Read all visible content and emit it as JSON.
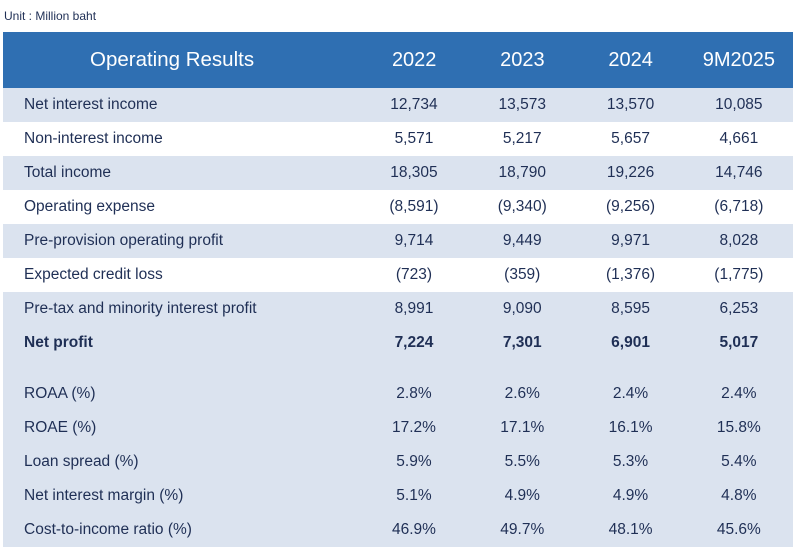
{
  "unit_label": "Unit : Million baht",
  "header": {
    "title": "Operating Results",
    "years": [
      "2022",
      "2023",
      "2024",
      "9M2025"
    ]
  },
  "income_rows": [
    {
      "label": "Net interest income",
      "values": [
        "12,734",
        "13,573",
        "13,570",
        "10,085"
      ]
    },
    {
      "label": "Non-interest income",
      "values": [
        "5,571",
        "5,217",
        "5,657",
        "4,661"
      ]
    },
    {
      "label": "Total income",
      "values": [
        "18,305",
        "18,790",
        "19,226",
        "14,746"
      ]
    },
    {
      "label": "Operating expense",
      "values": [
        "(8,591)",
        "(9,340)",
        "(9,256)",
        "(6,718)"
      ]
    },
    {
      "label": "Pre-provision operating profit",
      "values": [
        "9,714",
        "9,449",
        "9,971",
        "8,028"
      ]
    },
    {
      "label": "Expected credit loss",
      "values": [
        "(723)",
        "(359)",
        "(1,376)",
        "(1,775)"
      ]
    },
    {
      "label": "Pre-tax and minority interest profit",
      "values": [
        "8,991",
        "9,090",
        "8,595",
        "6,253"
      ]
    },
    {
      "label": "Net profit",
      "values": [
        "7,224",
        "7,301",
        "6,901",
        "5,017"
      ]
    }
  ],
  "ratio_rows": [
    {
      "label": "ROAA (%)",
      "values": [
        "2.8%",
        "2.6%",
        "2.4%",
        "2.4%"
      ]
    },
    {
      "label": "ROAE (%)",
      "values": [
        "17.2%",
        "17.1%",
        "16.1%",
        "15.8%"
      ]
    },
    {
      "label": "Loan spread (%)",
      "values": [
        "5.9%",
        "5.5%",
        "5.3%",
        "5.4%"
      ]
    },
    {
      "label": "Net interest margin (%)",
      "values": [
        "5.1%",
        "4.9%",
        "4.9%",
        "4.8%"
      ]
    },
    {
      "label": "Cost-to-income ratio (%)",
      "values": [
        "46.9%",
        "49.7%",
        "48.1%",
        "45.6%"
      ]
    }
  ],
  "colors": {
    "header_bg": "#2f6fb2",
    "shaded_row": "#dbe3ef",
    "text": "#1f2f55"
  }
}
